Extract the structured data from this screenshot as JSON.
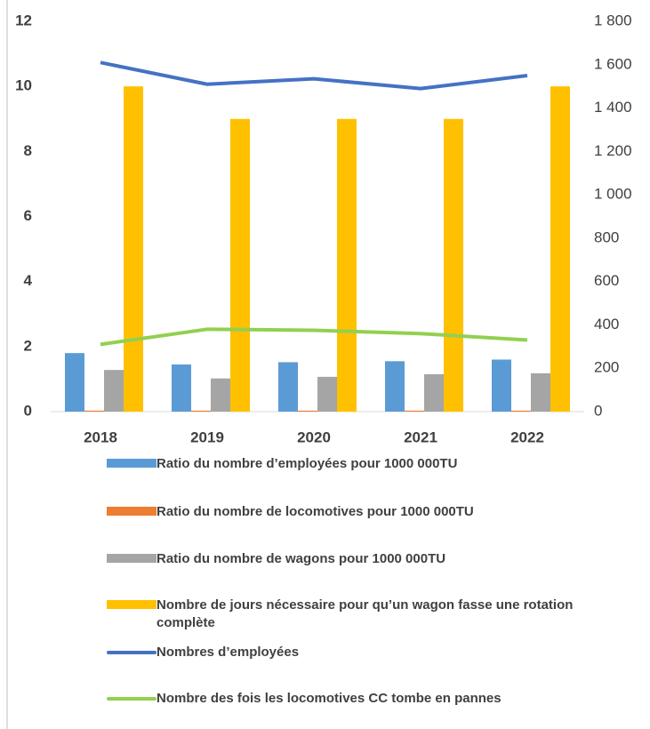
{
  "chart_data": {
    "type": "bar",
    "categories": [
      "2018",
      "2019",
      "2020",
      "2021",
      "2022"
    ],
    "ylim": [
      0,
      12
    ],
    "yticks": [
      0,
      2,
      4,
      6,
      8,
      10,
      12
    ],
    "y2lim": [
      0,
      1800
    ],
    "y2ticks": [
      0,
      200,
      400,
      600,
      800,
      {
        "value": 1000,
        "label": "1 000"
      },
      {
        "value": 1200,
        "label": "1 200"
      },
      {
        "value": 1400,
        "label": "1 400"
      },
      {
        "value": 1600,
        "label": "1 600"
      },
      {
        "value": 1800,
        "label": "1 800"
      }
    ],
    "series": [
      {
        "name": "Ratio du nombre d’employées pour 1000 000TU",
        "type": "bar",
        "color": "#5b9bd5",
        "values": [
          1.8,
          1.45,
          1.52,
          1.55,
          1.6
        ]
      },
      {
        "name": "Ratio du nombre de locomotives pour 1000 000TU",
        "type": "bar",
        "color": "#ed7d31",
        "values": [
          0.03,
          0.03,
          0.03,
          0.03,
          0.03
        ]
      },
      {
        "name": "Ratio du nombre de wagons pour 1000 000TU",
        "type": "bar",
        "color": "#a5a5a5",
        "values": [
          1.28,
          1.02,
          1.07,
          1.15,
          1.18
        ]
      },
      {
        "name": "Nombre de jours nécessaire pour qu’un wagon fasse une rotation complète",
        "type": "bar",
        "color": "#ffc000",
        "values": [
          10,
          9,
          9,
          9,
          10
        ]
      },
      {
        "name": "Nombres d’employées",
        "type": "line",
        "axis": "y2",
        "color": "#4472c4",
        "values": [
          1610,
          1510,
          1535,
          1490,
          1550
        ]
      },
      {
        "name": "Nombre des fois les locomotives  CC tombe en pannes",
        "type": "line",
        "axis": "y2",
        "color": "#92d050",
        "values": [
          310,
          380,
          375,
          360,
          330
        ]
      }
    ]
  }
}
